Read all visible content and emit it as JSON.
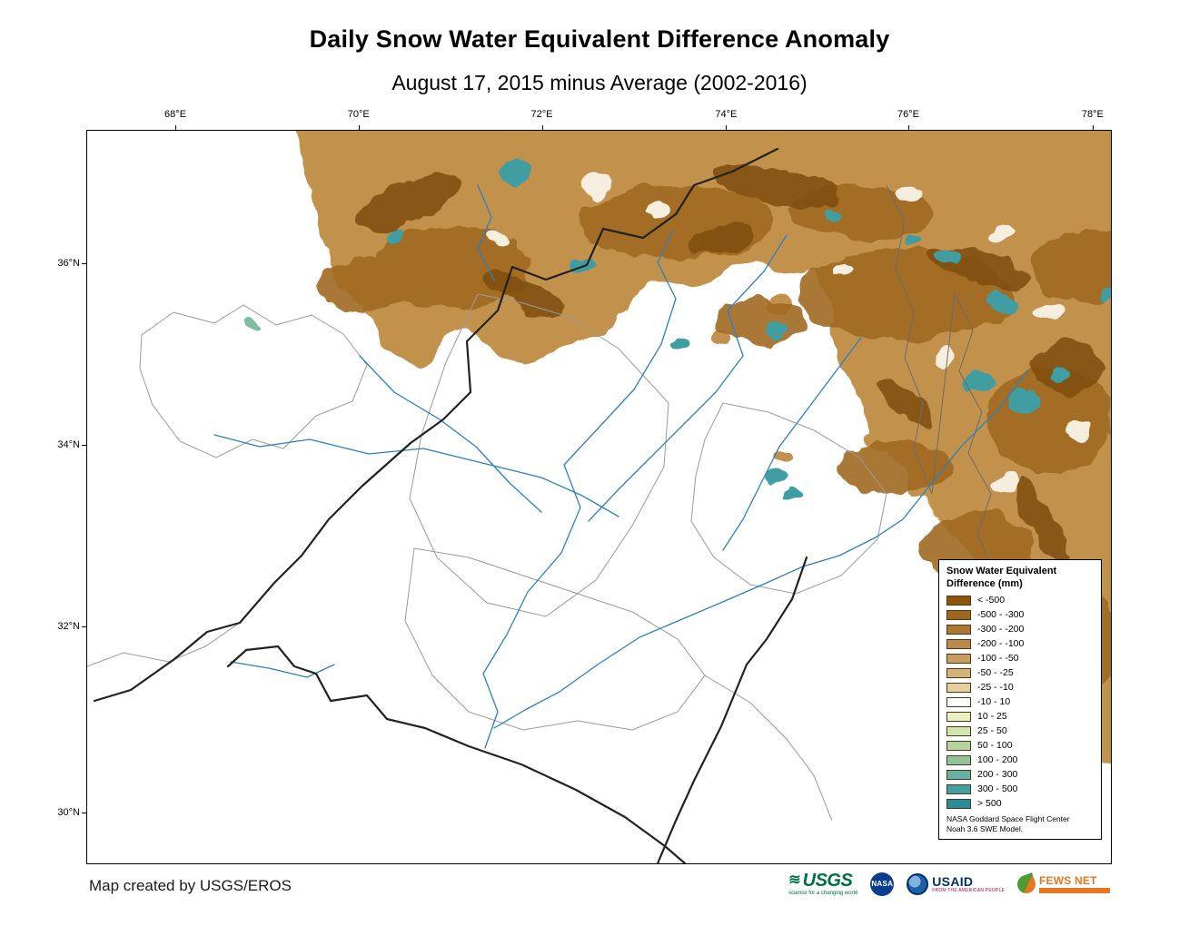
{
  "page": {
    "title": "Daily Snow Water Equivalent Difference Anomaly",
    "subtitle": "August 17, 2015 minus Average (2002-2016)",
    "credit": "Map created by USGS/EROS"
  },
  "map": {
    "x_ticks": [
      "68°E",
      "70°E",
      "72°E",
      "74°E",
      "76°E",
      "78°E"
    ],
    "y_ticks": [
      "36°N",
      "34°N",
      "32°N",
      "30°N"
    ]
  },
  "legend": {
    "title_line1": "Snow Water Equivalent",
    "title_line2": "Difference (mm)",
    "entries": [
      {
        "label": "< -500",
        "color": "#8e5409"
      },
      {
        "label": "-500 - -300",
        "color": "#9e661f"
      },
      {
        "label": "-300 - -200",
        "color": "#ab7733"
      },
      {
        "label": "-200 - -100",
        "color": "#b98a49"
      },
      {
        "label": "-100 - -50",
        "color": "#c79e60"
      },
      {
        "label": "-50 - -25",
        "color": "#d4b278"
      },
      {
        "label": "-25 - -10",
        "color": "#e4cf9d"
      },
      {
        "label": "-10 - 10",
        "color": "#ffffff"
      },
      {
        "label": "10 - 25",
        "color": "#ebf0c2"
      },
      {
        "label": "25 - 50",
        "color": "#d3e4ad"
      },
      {
        "label": "50 - 100",
        "color": "#b3d49e"
      },
      {
        "label": "100 - 200",
        "color": "#8fc39b"
      },
      {
        "label": "200 - 300",
        "color": "#67b1a0"
      },
      {
        "label": "300 - 500",
        "color": "#449fa5"
      },
      {
        "label": "> 500",
        "color": "#2a8c98"
      }
    ],
    "source_line1": "NASA Goddard Space Flight Center",
    "source_line2": "Noah 3.6  SWE Model."
  },
  "logos": {
    "usgs_text": "USGS",
    "usgs_tagline": "science for a changing world",
    "nasa_text": "NASA",
    "usaid_text": "USAID",
    "usaid_tagline": "FROM THE AMERICAN PEOPLE",
    "fews_text": "FEWS NET"
  }
}
